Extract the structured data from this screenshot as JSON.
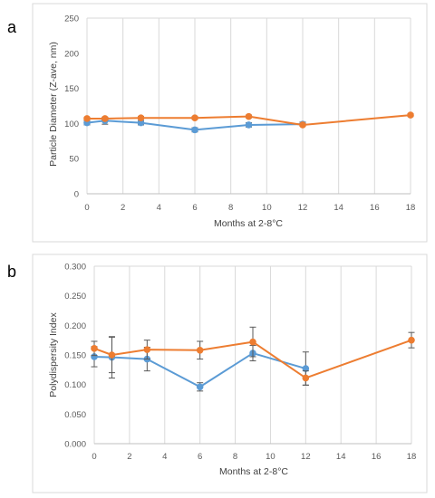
{
  "panels": [
    {
      "label": "a",
      "chart_data": {
        "type": "line",
        "xlabel": "Months at 2-8°C",
        "ylabel": "Particle Diameter (Z-ave, nm)",
        "xlim": [
          0,
          18
        ],
        "ylim": [
          0,
          250
        ],
        "x_ticks": [
          "0",
          "2",
          "4",
          "6",
          "8",
          "10",
          "12",
          "14",
          "16",
          "18"
        ],
        "y_ticks": [
          "0",
          "50",
          "100",
          "150",
          "200",
          "250"
        ],
        "y_tick_values": [
          0,
          50,
          100,
          150,
          200,
          250
        ],
        "grid": "vertical",
        "legend": "none",
        "series": [
          {
            "color": "#5B9BD5",
            "x": [
              0,
              1,
              3,
              6,
              9,
              12
            ],
            "y": [
              101,
              104,
              101,
              91,
              98,
              99
            ],
            "err": [
              3,
              5,
              3,
              3,
              3,
              3
            ]
          },
          {
            "color": "#ED7D31",
            "x": [
              0,
              1,
              3,
              6,
              9,
              12,
              18
            ],
            "y": [
              107,
              107,
              108,
              108,
              110,
              98,
              112
            ],
            "err": [
              2,
              2,
              2,
              2,
              2,
              2,
              2
            ]
          }
        ]
      }
    },
    {
      "label": "b",
      "chart_data": {
        "type": "line",
        "xlabel": "Months at 2-8°C",
        "ylabel": "Polydispersity Index",
        "xlim": [
          0,
          18
        ],
        "ylim": [
          0,
          0.3
        ],
        "x_ticks": [
          "0",
          "2",
          "4",
          "6",
          "8",
          "10",
          "12",
          "14",
          "16",
          "18"
        ],
        "y_ticks": [
          "0.000",
          "0.050",
          "0.100",
          "0.150",
          "0.200",
          "0.250",
          "0.300"
        ],
        "y_tick_values": [
          0,
          0.05,
          0.1,
          0.15,
          0.2,
          0.25,
          0.3
        ],
        "grid": "vertical",
        "legend": "none",
        "series": [
          {
            "color": "#5B9BD5",
            "x": [
              0,
              1,
              3,
              6,
              9,
              12
            ],
            "y": [
              0.147,
              0.146,
              0.143,
              0.096,
              0.153,
              0.127
            ],
            "err": [
              0.017,
              0.035,
              0.02,
              0.007,
              0.013,
              0.028
            ]
          },
          {
            "color": "#ED7D31",
            "x": [
              0,
              1,
              3,
              6,
              9,
              12,
              18
            ],
            "y": [
              0.161,
              0.15,
              0.159,
              0.158,
              0.172,
              0.111,
              0.175
            ],
            "err": [
              0.012,
              0.03,
              0.016,
              0.015,
              0.025,
              0.012,
              0.013
            ]
          }
        ]
      }
    }
  ]
}
